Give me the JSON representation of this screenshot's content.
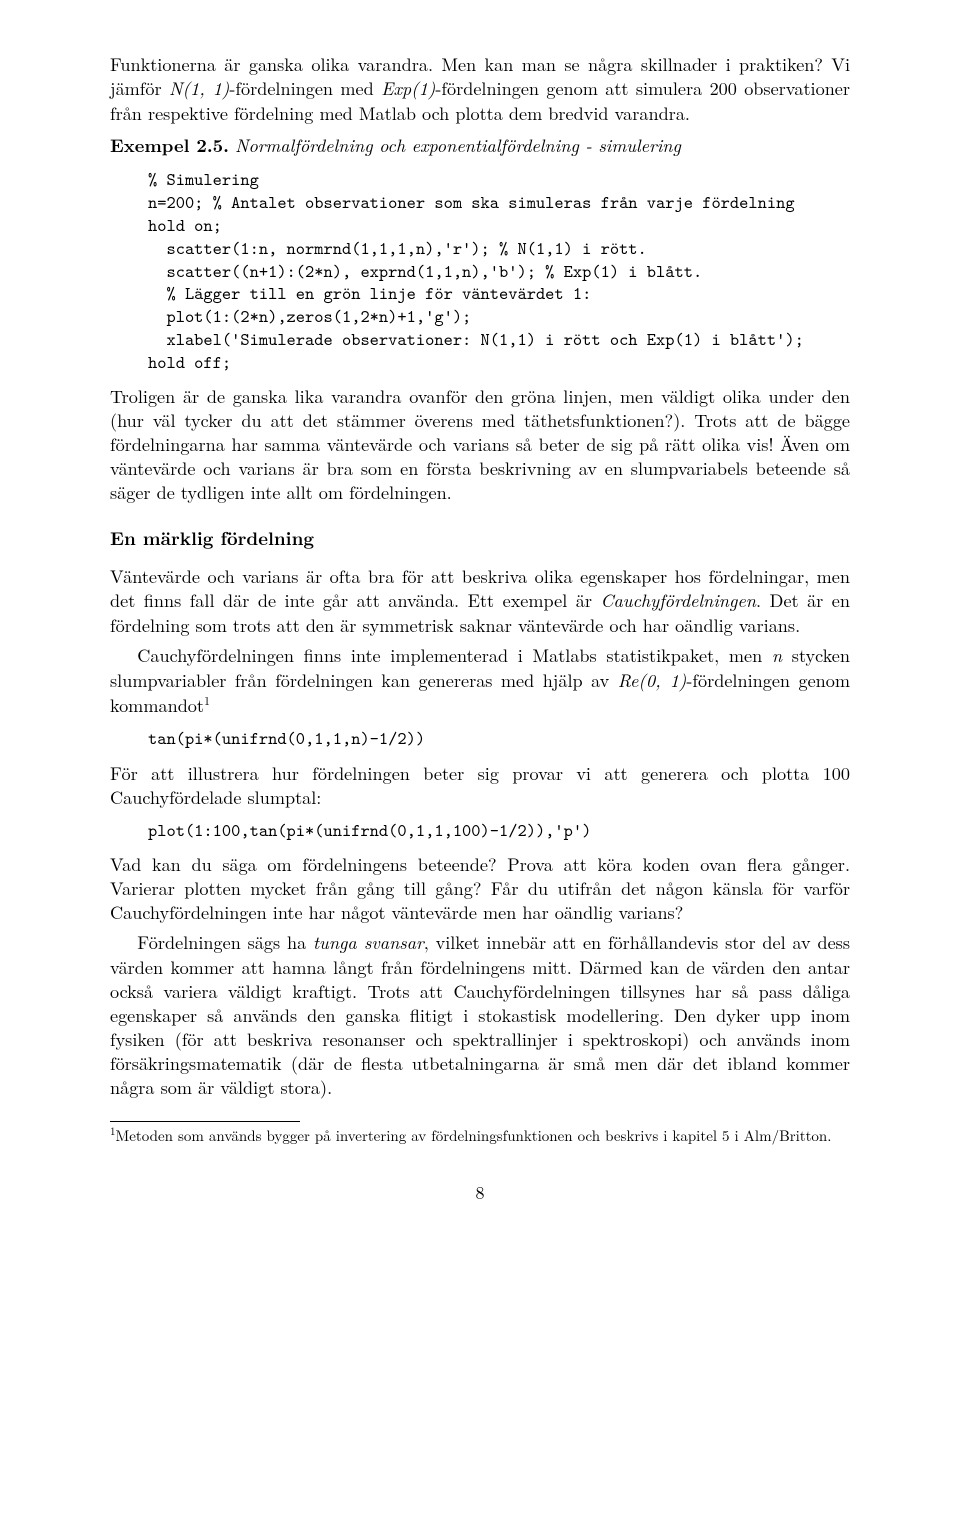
{
  "intro_p1": "Funktionerna är ganska olika varandra. Men kan man se några skillnader i praktiken? Vi jämför",
  "intro_math1": "N(1, 1)",
  "intro_p1b": "-fördelningen med ",
  "intro_math2": "Exp(1)",
  "intro_p1c": "-fördelningen genom att simulera 200 observationer från respektive fördelning med Matlab och plotta dem bredvid varandra.",
  "example_label": "Exempel 2.5.",
  "example_title": "Normalfördelning och exponentialfördelning - simulering",
  "code1": "% Simulering\nn=200; % Antalet observationer som ska simuleras från varje fördelning\nhold on;\n  scatter(1:n, normrnd(1,1,1,n),'r'); % N(1,1) i rött.\n  scatter((n+1):(2*n), exprnd(1,1,n),'b'); % Exp(1) i blått.\n  % Lägger till en grön linje för väntevärdet 1:\n  plot(1:(2*n),zeros(1,2*n)+1,'g');\n  xlabel('Simulerade observationer: N(1,1) i rött och Exp(1) i blått');\nhold off;",
  "para2": "Troligen är de ganska lika varandra ovanför den gröna linjen, men väldigt olika under den (hur väl tycker du att det stämmer överens med täthetsfunktionen?). Trots att de bägge fördelningarna har samma väntevärde och varians så beter de sig på rätt olika vis! Även om väntevärde och varians är bra som en första beskrivning av en slumpvariabels beteende så säger de tydligen inte allt om fördelningen.",
  "section_head": "En märklig fördelning",
  "para3a": "Väntevärde och varians är ofta bra för att beskriva olika egenskaper hos fördelningar, men det finns fall där de inte går att använda. Ett exempel är ",
  "para3_cauchy": "Cauchyfördelningen",
  "para3b": ". Det är en fördelning som trots att den är symmetrisk saknar väntevärde och har oändlig varians.",
  "para4a": "Cauchyfördelningen finns inte implementerad i Matlabs statistikpaket, men ",
  "para4_n": "n",
  "para4b": " styc­ken slumpvariabler från fördelningen kan genereras med hjälp av ",
  "para4_re": "Re(0, 1)",
  "para4c": "-fördelningen genom kommandot",
  "code2": "tan(pi*(unifrnd(0,1,1,n)-1/2))",
  "para5": "För att illustrera hur fördelningen beter sig provar vi att generera och plotta 100 Cauchyfördelade slumptal:",
  "code3": "plot(1:100,tan(pi*(unifrnd(0,1,1,100)-1/2)),'p')",
  "para6": "Vad kan du säga om fördelningens beteende? Prova att köra koden ovan flera gånger. Varierar plotten mycket från gång till gång? Får du utifrån det någon känsla för varför Cauchyfördelningen inte har något väntevärde men har oändlig varians?",
  "para7a": "Fördelningen sägs ha ",
  "para7_tunga": "tunga svansar",
  "para7b": ", vilket innebär att en förhållandevis stor del av dess värden kommer att hamna långt från fördelningens mitt. Därmed kan de värden den antar också variera väldigt kraftigt. Trots att Cauchyfördelningen tillsynes har så pass dåliga egenskaper så används den ganska flitigt i stokastisk modellering. Den dyker upp inom fysiken (för att beskriva resonanser och spektrallinjer i spektroskopi) och används inom försäkringsmatematik (där de flesta utbetalningarna är små men där det ibland kommer några som är väldigt stora).",
  "footnote": "Metoden som används bygger på invertering av fördelningsfunktionen och beskrivs i kapitel 5 i Alm/Britton.",
  "footnote_mark": "1",
  "pagenum": "8"
}
